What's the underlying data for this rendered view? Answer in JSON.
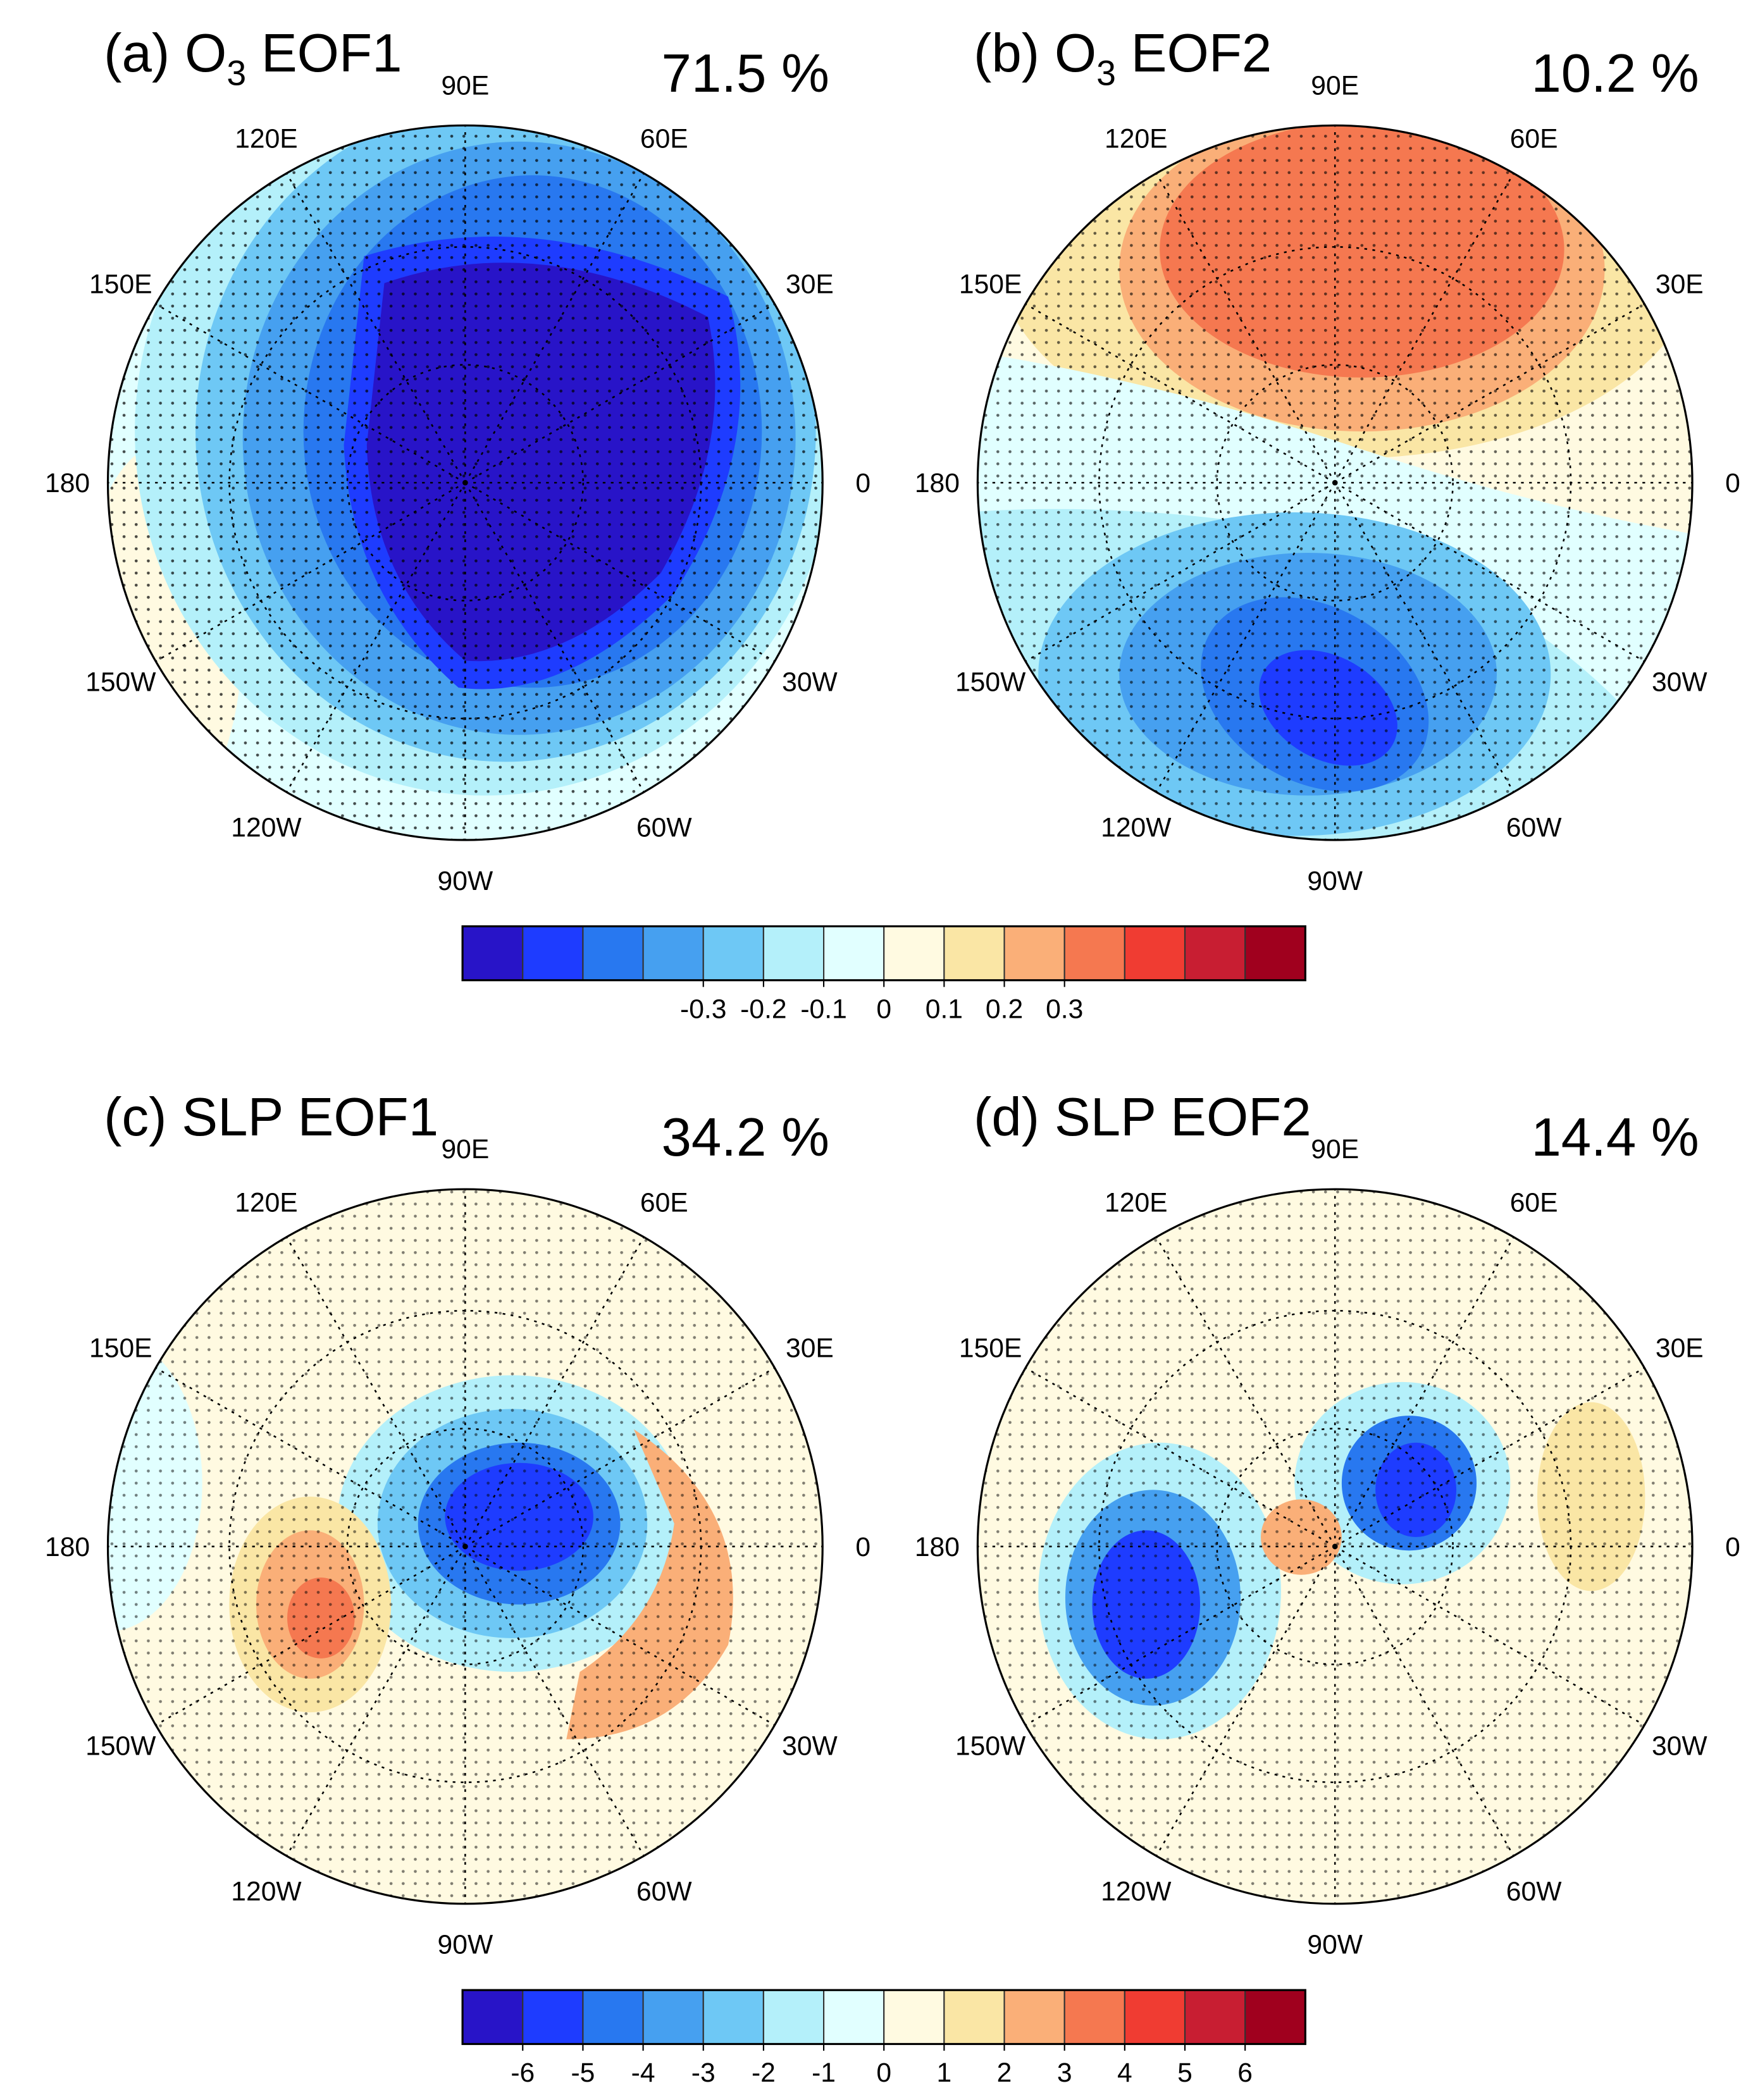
{
  "panels": [
    {
      "title": "(a) O",
      "title_sub": "3",
      "title_rest": " EOF1",
      "variance": "71.5 %"
    },
    {
      "title": "(b) O",
      "title_sub": "3",
      "title_rest": " EOF2",
      "variance": "10.2 %"
    },
    {
      "title": "(c) SLP EOF1",
      "variance": "34.2 %"
    },
    {
      "title": "(d) SLP EOF2",
      "variance": "14.4 %"
    }
  ],
  "longitude_labels": [
    "0",
    "30E",
    "60E",
    "90E",
    "120E",
    "150E",
    "180",
    "150W",
    "120W",
    "90W",
    "60W",
    "30W"
  ],
  "colorbars": [
    {
      "colors": [
        "#2814c8",
        "#1e3cff",
        "#2878f0",
        "#46a0f0",
        "#6ec8f5",
        "#b4f0fa",
        "#e1ffff",
        "#fffae1",
        "#fae6a5",
        "#faaf78",
        "#f57850",
        "#f03c32",
        "#c81e32",
        "#a0001e"
      ],
      "ticks": [
        -0.3,
        -0.2,
        -0.1,
        0,
        0.1,
        0.2,
        0.3
      ]
    },
    {
      "colors": [
        "#2814c8",
        "#1e3cff",
        "#2878f0",
        "#46a0f0",
        "#6ec8f5",
        "#b4f0fa",
        "#e1ffff",
        "#fffae1",
        "#fae6a5",
        "#faaf78",
        "#f57850",
        "#f03c32",
        "#c81e32",
        "#a0001e"
      ],
      "ticks": [
        -6,
        -5,
        -4,
        -3,
        -2,
        -1,
        0,
        1,
        2,
        3,
        4,
        5,
        6
      ]
    }
  ]
}
